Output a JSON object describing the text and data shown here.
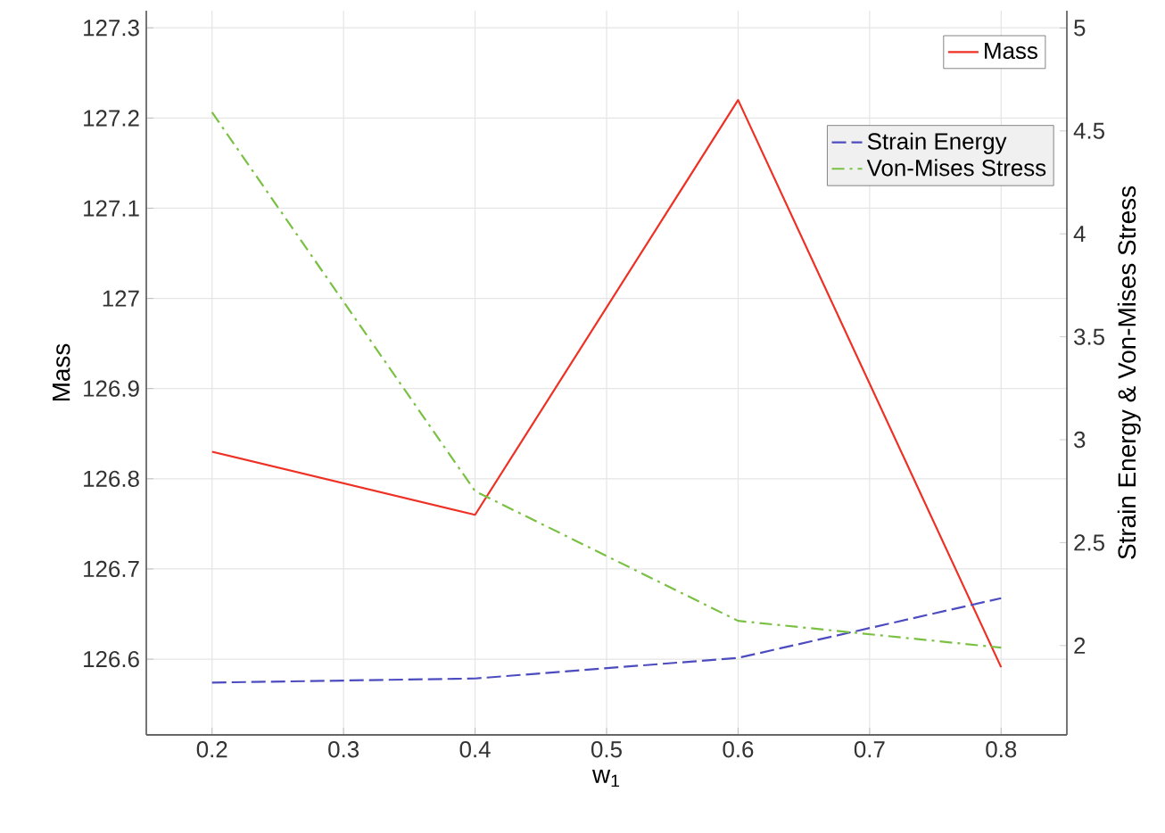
{
  "chart_data": {
    "type": "line",
    "xlabel": "w$_{1}$",
    "ylabel": "Mass",
    "y2label": "Strain Energy & Von-Mises Stress",
    "x": [
      0.2,
      0.4,
      0.6,
      0.8
    ],
    "series": [
      {
        "name": "Mass",
        "color": "#ee3124",
        "line_style": "solid",
        "values": [
          126.83,
          126.76,
          127.22,
          126.591
        ]
      },
      {
        "name": "Strain Energy",
        "color": "#4c4cc0",
        "line_style": "dashed",
        "axis": "y2",
        "values": [
          1.82,
          1.84,
          1.94,
          2.23
        ]
      },
      {
        "name": "Von-Mises Stress",
        "color": "#7ac143",
        "line_style": "dashdot",
        "axis": "y2",
        "values": [
          4.59,
          2.75,
          2.12,
          1.99
        ]
      }
    ],
    "xlim": [
      0.15,
      0.85
    ],
    "xticks": [
      0.2,
      0.3,
      0.4,
      0.5,
      0.6,
      0.7,
      0.8
    ],
    "ylim": [
      126.516,
      127.319
    ],
    "yticks": [
      126.6,
      126.7,
      126.8,
      126.9,
      127,
      127.1,
      127.2,
      127.3
    ],
    "y2lim": [
      1.566,
      5.084
    ],
    "y2ticks": [
      2,
      2.5,
      3,
      3.5,
      4,
      4.5,
      5
    ],
    "grid": true,
    "legend": "top right",
    "marker": "none"
  }
}
